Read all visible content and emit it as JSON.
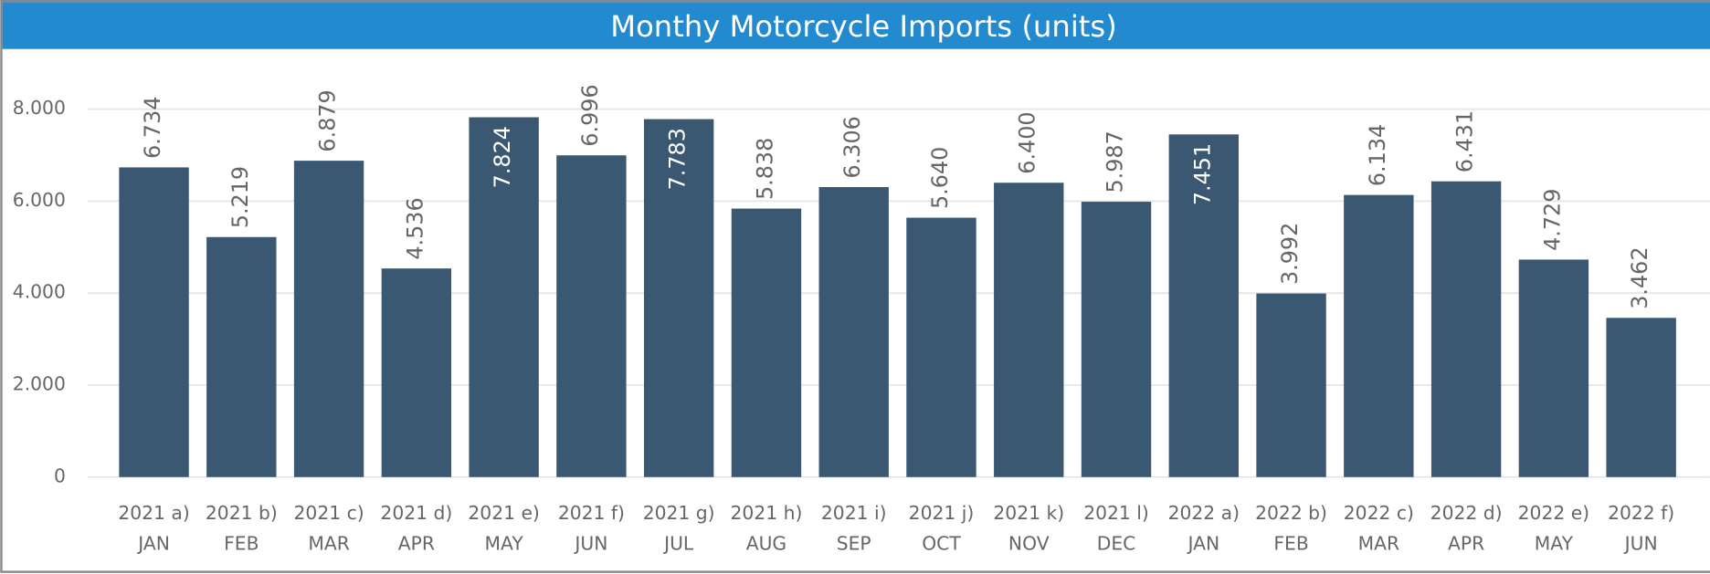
{
  "chart_data": {
    "type": "bar",
    "title": "Monthy Motorcycle Imports (units)",
    "categories": [
      [
        "2021 a)",
        "JAN"
      ],
      [
        "2021 b)",
        "FEB"
      ],
      [
        "2021 c)",
        "MAR"
      ],
      [
        "2021 d)",
        "APR"
      ],
      [
        "2021 e)",
        "MAY"
      ],
      [
        "2021 f)",
        "JUN"
      ],
      [
        "2021 g)",
        "JUL"
      ],
      [
        "2021 h)",
        "AUG"
      ],
      [
        "2021 i)",
        "SEP"
      ],
      [
        "2021 j)",
        "OCT"
      ],
      [
        "2021 k)",
        "NOV"
      ],
      [
        "2021 l)",
        "DEC"
      ],
      [
        "2022 a)",
        "JAN"
      ],
      [
        "2022 b)",
        "FEB"
      ],
      [
        "2022 c)",
        "MAR"
      ],
      [
        "2022 d)",
        "APR"
      ],
      [
        "2022 e)",
        "MAY"
      ],
      [
        "2022 f)",
        "JUN"
      ]
    ],
    "values": [
      6734,
      5219,
      6879,
      4536,
      7824,
      6996,
      7783,
      5838,
      6306,
      5640,
      6400,
      5987,
      7451,
      3992,
      6134,
      6431,
      4729,
      3462
    ],
    "value_labels": [
      "6.734",
      "5.219",
      "6.879",
      "4.536",
      "7.824",
      "6.996",
      "7.783",
      "5.838",
      "6.306",
      "5.640",
      "6.400",
      "5.987",
      "7.451",
      "3.992",
      "6.134",
      "6.431",
      "4.729",
      "3.462"
    ],
    "color": "#3a5872",
    "ylim": [
      0,
      9000
    ],
    "yticks": [
      0,
      {
        "value": 2000,
        "label": "2.000"
      },
      {
        "value": 4000,
        "label": "4.000"
      },
      {
        "value": 6000,
        "label": "6.000"
      },
      {
        "value": 8000,
        "label": "8.000"
      }
    ],
    "grid": true
  }
}
